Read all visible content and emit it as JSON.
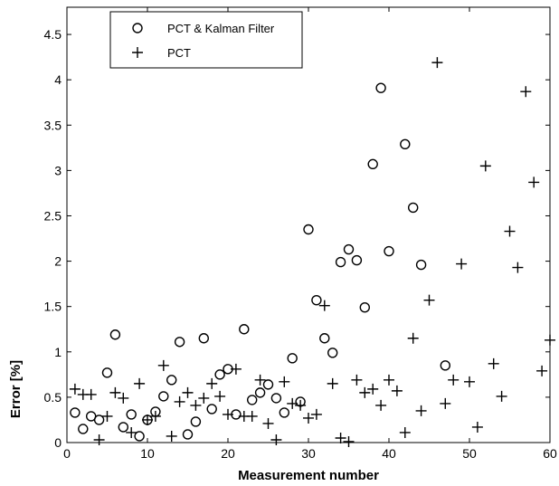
{
  "chart_data": {
    "type": "scatter",
    "xlabel": "Measurement number",
    "ylabel": "Error  [%]",
    "xlim": [
      0,
      60
    ],
    "ylim": [
      0,
      4.8
    ],
    "xticks": [
      0,
      10,
      20,
      30,
      40,
      50,
      60
    ],
    "yticks": [
      0,
      0.5,
      1,
      1.5,
      2,
      2.5,
      3,
      3.5,
      4,
      4.5
    ],
    "ytick_labels": [
      "0",
      "0.5",
      "1",
      "1.5",
      "2",
      "2.5",
      "3",
      "3.5",
      "4",
      "4.5"
    ],
    "grid": false,
    "legend_position": "top-left",
    "series": [
      {
        "name": "PCT & Kalman Filter",
        "marker": "circle",
        "points": [
          [
            1,
            0.33
          ],
          [
            2,
            0.15
          ],
          [
            3,
            0.29
          ],
          [
            4,
            0.25
          ],
          [
            5,
            0.77
          ],
          [
            6,
            1.19
          ],
          [
            7,
            0.17
          ],
          [
            8,
            0.31
          ],
          [
            9,
            0.07
          ],
          [
            10,
            0.25
          ],
          [
            11,
            0.34
          ],
          [
            12,
            0.51
          ],
          [
            13,
            0.69
          ],
          [
            14,
            1.11
          ],
          [
            15,
            0.09
          ],
          [
            16,
            0.23
          ],
          [
            17,
            1.15
          ],
          [
            18,
            0.37
          ],
          [
            19,
            0.75
          ],
          [
            20,
            0.81
          ],
          [
            21,
            0.31
          ],
          [
            22,
            1.25
          ],
          [
            23,
            0.47
          ],
          [
            24,
            0.55
          ],
          [
            25,
            0.64
          ],
          [
            26,
            0.49
          ],
          [
            27,
            0.33
          ],
          [
            28,
            0.93
          ],
          [
            29,
            0.45
          ],
          [
            30,
            2.35
          ],
          [
            31,
            1.57
          ],
          [
            32,
            1.15
          ],
          [
            33,
            0.99
          ],
          [
            34,
            1.99
          ],
          [
            35,
            2.13
          ],
          [
            36,
            2.01
          ],
          [
            37,
            1.49
          ],
          [
            38,
            3.07
          ],
          [
            39,
            3.91
          ],
          [
            40,
            2.11
          ],
          [
            42,
            3.29
          ],
          [
            43,
            2.59
          ],
          [
            44,
            1.96
          ],
          [
            47,
            0.85
          ]
        ]
      },
      {
        "name": "PCT",
        "marker": "plus",
        "points": [
          [
            1,
            0.59
          ],
          [
            2,
            0.53
          ],
          [
            3,
            0.53
          ],
          [
            4,
            0.03
          ],
          [
            5,
            0.29
          ],
          [
            6,
            0.55
          ],
          [
            7,
            0.49
          ],
          [
            8,
            0.11
          ],
          [
            9,
            0.65
          ],
          [
            10,
            0.25
          ],
          [
            11,
            0.29
          ],
          [
            12,
            0.85
          ],
          [
            13,
            0.07
          ],
          [
            14,
            0.45
          ],
          [
            15,
            0.55
          ],
          [
            16,
            0.41
          ],
          [
            17,
            0.49
          ],
          [
            18,
            0.65
          ],
          [
            19,
            0.51
          ],
          [
            20,
            0.31
          ],
          [
            21,
            0.81
          ],
          [
            22,
            0.29
          ],
          [
            23,
            0.29
          ],
          [
            24,
            0.69
          ],
          [
            25,
            0.21
          ],
          [
            26,
            0.03
          ],
          [
            27,
            0.67
          ],
          [
            28,
            0.43
          ],
          [
            29,
            0.41
          ],
          [
            30,
            0.27
          ],
          [
            31,
            0.31
          ],
          [
            32,
            1.51
          ],
          [
            33,
            0.65
          ],
          [
            34,
            0.05
          ],
          [
            35,
            0.01
          ],
          [
            36,
            0.69
          ],
          [
            37,
            0.55
          ],
          [
            38,
            0.59
          ],
          [
            39,
            0.41
          ],
          [
            40,
            0.69
          ],
          [
            41,
            0.57
          ],
          [
            42,
            0.11
          ],
          [
            43,
            1.15
          ],
          [
            44,
            0.35
          ],
          [
            45,
            1.57
          ],
          [
            46,
            4.19
          ],
          [
            47,
            0.43
          ],
          [
            48,
            0.69
          ],
          [
            49,
            1.97
          ],
          [
            50,
            0.67
          ],
          [
            51,
            0.17
          ],
          [
            52,
            3.05
          ],
          [
            53,
            0.87
          ],
          [
            54,
            0.51
          ],
          [
            55,
            2.33
          ],
          [
            56,
            1.93
          ],
          [
            57,
            3.87
          ],
          [
            58,
            2.87
          ],
          [
            59,
            0.79
          ],
          [
            60,
            1.13
          ]
        ]
      }
    ]
  }
}
